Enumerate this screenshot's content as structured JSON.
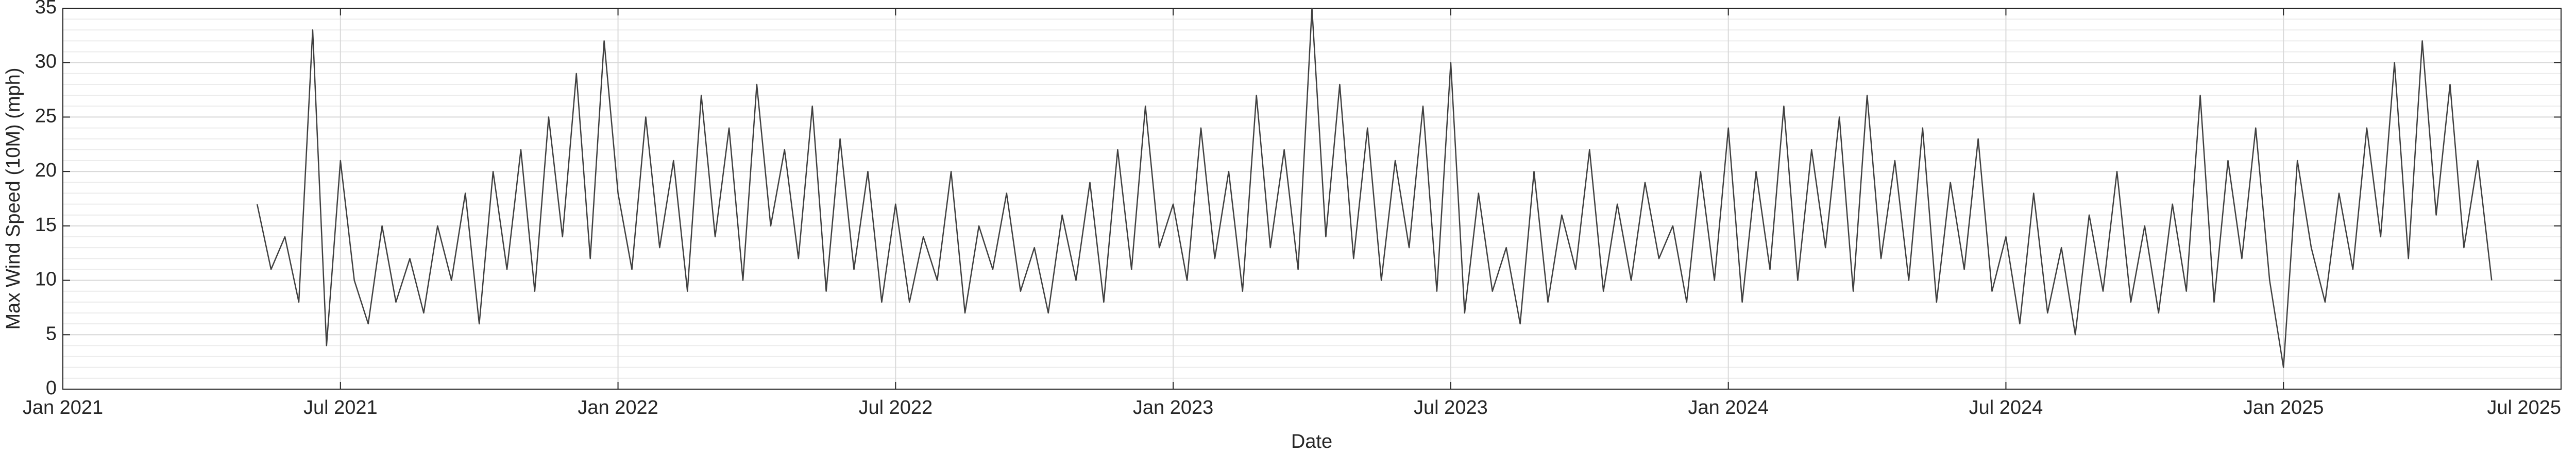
{
  "chart_data": {
    "type": "line",
    "xlabel": "Date",
    "ylabel": "Max Wind Speed (10M) (mph)",
    "xlim": [
      2021.0,
      2025.5
    ],
    "xticks": [
      {
        "value": 2021.0,
        "label": "Jan 2021"
      },
      {
        "value": 2021.5,
        "label": "Jul 2021"
      },
      {
        "value": 2022.0,
        "label": "Jan 2022"
      },
      {
        "value": 2022.5,
        "label": "Jul 2022"
      },
      {
        "value": 2023.0,
        "label": "Jan 2023"
      },
      {
        "value": 2023.5,
        "label": "Jul 2023"
      },
      {
        "value": 2024.0,
        "label": "Jan 2024"
      },
      {
        "value": 2024.5,
        "label": "Jul 2024"
      },
      {
        "value": 2025.0,
        "label": "Jan 2025"
      },
      {
        "value": 2025.5,
        "label": "Jul 2025"
      }
    ],
    "ylim": [
      0,
      35
    ],
    "yticks": [
      0,
      5,
      10,
      15,
      20,
      25,
      30,
      35
    ],
    "grid": true,
    "minor_grid": true,
    "x": [
      2021.35,
      2021.375,
      2021.4,
      2021.425,
      2021.45,
      2021.475,
      2021.5,
      2021.525,
      2021.55,
      2021.575,
      2021.6,
      2021.625,
      2021.65,
      2021.675,
      2021.7,
      2021.725,
      2021.75,
      2021.775,
      2021.8,
      2021.825,
      2021.85,
      2021.875,
      2021.9,
      2021.925,
      2021.95,
      2021.975,
      2022.0,
      2022.025,
      2022.05,
      2022.075,
      2022.1,
      2022.125,
      2022.15,
      2022.175,
      2022.2,
      2022.225,
      2022.25,
      2022.275,
      2022.3,
      2022.325,
      2022.35,
      2022.375,
      2022.4,
      2022.425,
      2022.45,
      2022.475,
      2022.5,
      2022.525,
      2022.55,
      2022.575,
      2022.6,
      2022.625,
      2022.65,
      2022.675,
      2022.7,
      2022.725,
      2022.75,
      2022.775,
      2022.8,
      2022.825,
      2022.85,
      2022.875,
      2022.9,
      2022.925,
      2022.95,
      2022.975,
      2023.0,
      2023.025,
      2023.05,
      2023.075,
      2023.1,
      2023.125,
      2023.15,
      2023.175,
      2023.2,
      2023.225,
      2023.25,
      2023.275,
      2023.3,
      2023.325,
      2023.35,
      2023.375,
      2023.4,
      2023.425,
      2023.45,
      2023.475,
      2023.5,
      2023.525,
      2023.55,
      2023.575,
      2023.6,
      2023.625,
      2023.65,
      2023.675,
      2023.7,
      2023.725,
      2023.75,
      2023.775,
      2023.8,
      2023.825,
      2023.85,
      2023.875,
      2023.9,
      2023.925,
      2023.95,
      2023.975,
      2024.0,
      2024.025,
      2024.05,
      2024.075,
      2024.1,
      2024.125,
      2024.15,
      2024.175,
      2024.2,
      2024.225,
      2024.25,
      2024.275,
      2024.3,
      2024.325,
      2024.35,
      2024.375,
      2024.4,
      2024.425,
      2024.45,
      2024.475,
      2024.5,
      2024.525,
      2024.55,
      2024.575,
      2024.6,
      2024.625,
      2024.65,
      2024.675,
      2024.7,
      2024.725,
      2024.75,
      2024.775,
      2024.8,
      2024.825,
      2024.85,
      2024.875,
      2024.9,
      2024.925,
      2024.95,
      2024.975,
      2025.0,
      2025.025,
      2025.05,
      2025.075,
      2025.1,
      2025.125,
      2025.15,
      2025.175,
      2025.2,
      2025.225,
      2025.25,
      2025.275,
      2025.3,
      2025.325,
      2025.35,
      2025.375
    ],
    "series": [
      {
        "color": "#404040",
        "values": [
          17,
          11,
          14,
          8,
          33,
          4,
          21,
          10,
          6,
          15,
          8,
          12,
          7,
          15,
          10,
          18,
          6,
          20,
          11,
          22,
          9,
          25,
          14,
          29,
          12,
          32,
          18,
          11,
          25,
          13,
          21,
          9,
          27,
          14,
          24,
          10,
          28,
          15,
          22,
          12,
          26,
          9,
          23,
          11,
          20,
          8,
          17,
          8,
          14,
          10,
          20,
          7,
          15,
          11,
          18,
          9,
          13,
          7,
          16,
          10,
          19,
          8,
          22,
          11,
          26,
          13,
          17,
          10,
          24,
          12,
          20,
          9,
          27,
          13,
          22,
          11,
          35,
          14,
          28,
          12,
          24,
          10,
          21,
          13,
          26,
          9,
          30,
          7,
          18,
          9,
          13,
          6,
          20,
          8,
          16,
          11,
          22,
          9,
          17,
          10,
          19,
          12,
          15,
          8,
          20,
          10,
          24,
          8,
          20,
          11,
          26,
          10,
          22,
          13,
          25,
          9,
          27,
          12,
          21,
          10,
          24,
          8,
          19,
          11,
          23,
          9,
          14,
          6,
          18,
          7,
          13,
          5,
          16,
          9,
          20,
          8,
          15,
          7,
          17,
          9,
          27,
          8,
          21,
          12,
          24,
          10,
          2,
          21,
          13,
          8,
          18,
          11,
          24,
          14,
          30,
          12,
          32,
          16,
          28,
          13,
          21,
          10
        ]
      }
    ]
  }
}
